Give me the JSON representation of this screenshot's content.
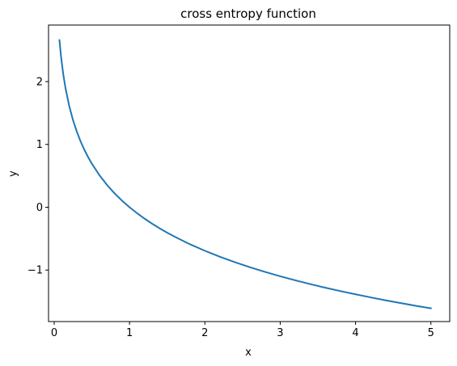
{
  "chart_data": {
    "type": "line",
    "title": "cross entropy function",
    "xlabel": "x",
    "ylabel": "y",
    "xlim": [
      -0.075,
      5.25
    ],
    "ylim": [
      -1.82,
      2.9
    ],
    "xticks": [
      0,
      1,
      2,
      3,
      4,
      5
    ],
    "yticks": [
      -1,
      0,
      1,
      2
    ],
    "xtick_labels": [
      "0",
      "1",
      "2",
      "3",
      "4",
      "5"
    ],
    "ytick_labels": [
      "−1",
      "0",
      "1",
      "2"
    ],
    "grid": false,
    "line_color": "#1f77b4",
    "series": [
      {
        "x": [
          0.07,
          0.09,
          0.12,
          0.15,
          0.2,
          0.25,
          0.3,
          0.35,
          0.4,
          0.45,
          0.5,
          0.6,
          0.7,
          0.8,
          0.9,
          1.0,
          1.1,
          1.2,
          1.3,
          1.4,
          1.5,
          1.6,
          1.8,
          2.0,
          2.2,
          2.4,
          2.6,
          2.8,
          3.0,
          3.2,
          3.4,
          3.6,
          3.8,
          4.0,
          4.2,
          4.4,
          4.6,
          4.8,
          5.0
        ],
        "y": [
          2.66,
          2.408,
          2.12,
          1.897,
          1.609,
          1.386,
          1.204,
          1.05,
          0.916,
          0.799,
          0.693,
          0.511,
          0.357,
          0.223,
          0.105,
          0.0,
          -0.095,
          -0.182,
          -0.262,
          -0.336,
          -0.405,
          -0.47,
          -0.588,
          -0.693,
          -0.788,
          -0.875,
          -0.956,
          -1.03,
          -1.099,
          -1.163,
          -1.224,
          -1.281,
          -1.335,
          -1.386,
          -1.435,
          -1.482,
          -1.526,
          -1.569,
          -1.609
        ]
      }
    ]
  }
}
